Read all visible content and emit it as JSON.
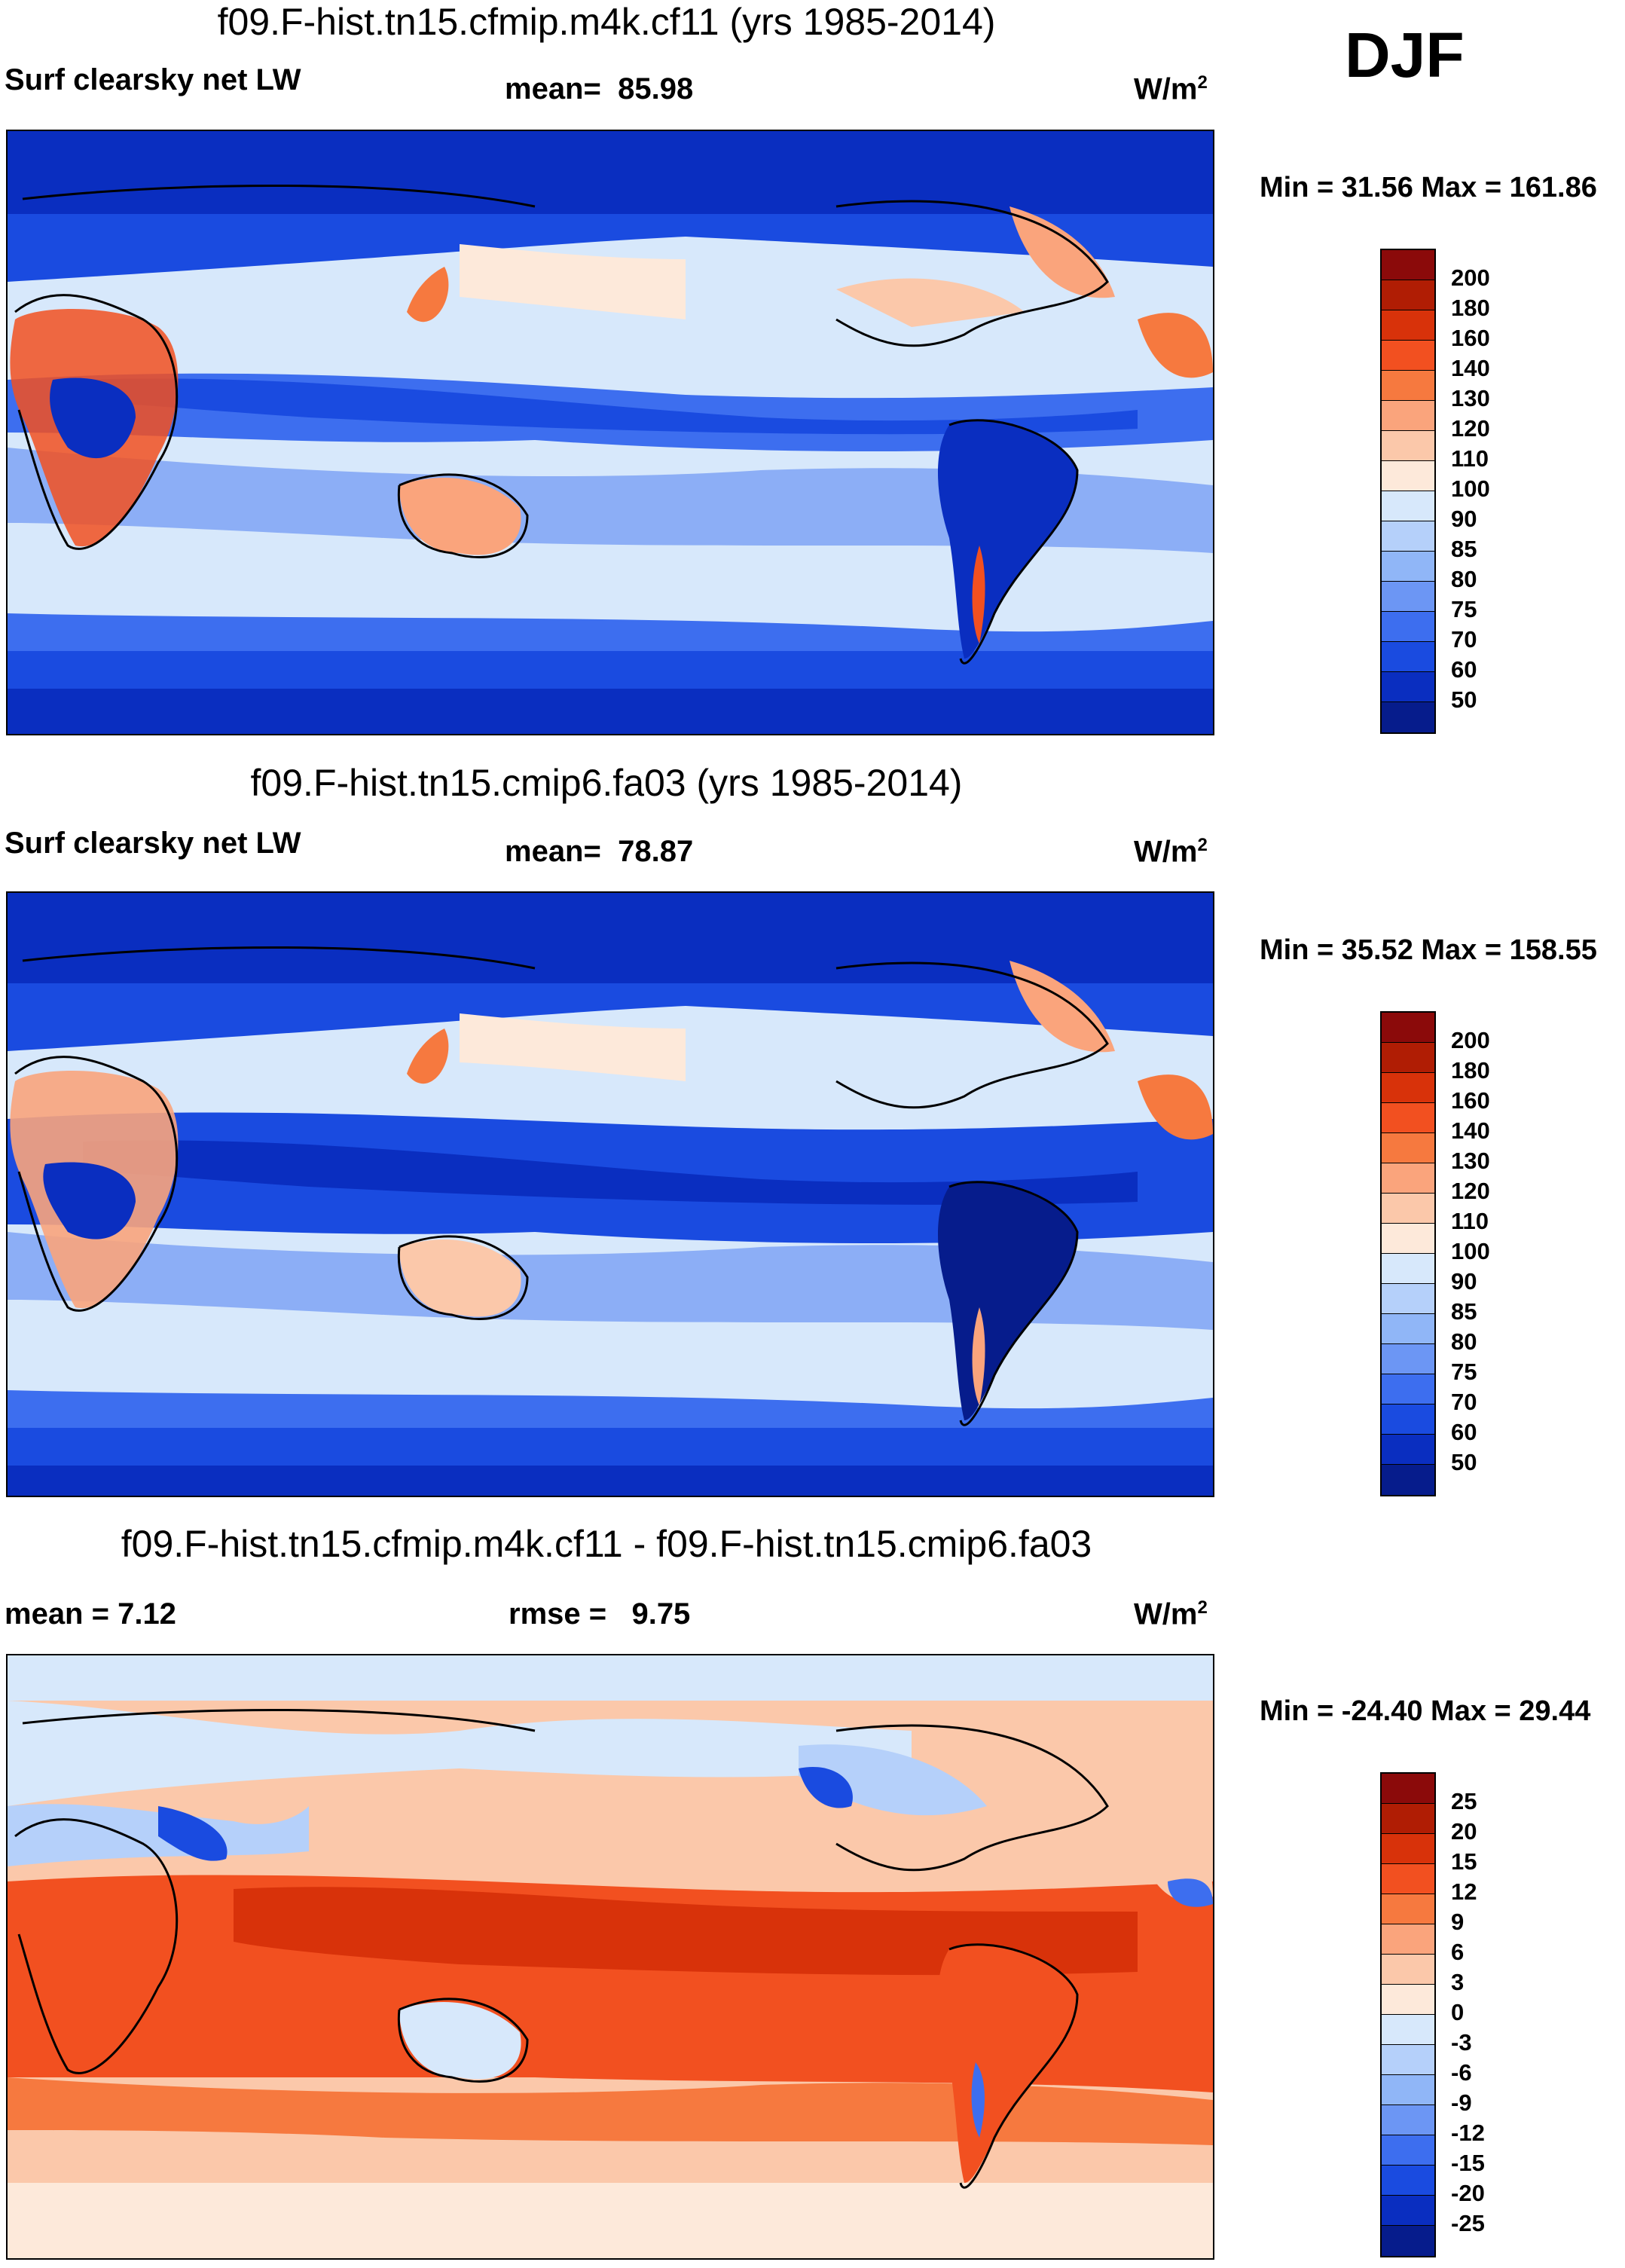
{
  "season": "DJF",
  "panels": [
    {
      "title": "f09.F-hist.tn15.cfmip.m4k.cf11 (yrs 1985-2014)",
      "left_label": "Surf clearsky net LW",
      "stat_label": "mean=",
      "stat_value": "85.98",
      "units": "W/m",
      "units_exp": "2",
      "min_text": "Min =  31.56 Max = 161.86",
      "colorbar": {
        "levels": [
          "200",
          "180",
          "160",
          "140",
          "130",
          "120",
          "110",
          "100",
          "90",
          "85",
          "80",
          "75",
          "70",
          "60",
          "50"
        ],
        "colors": [
          "#8b0a0a",
          "#b01d04",
          "#d8320a",
          "#f25020",
          "#f6793f",
          "#faa47c",
          "#fbc8aa",
          "#fde9da",
          "#d7e8fb",
          "#b5d0fa",
          "#90b6f7",
          "#6c96f4",
          "#3d6eef",
          "#1a4be0",
          "#0a2ec0",
          "#061c8c"
        ]
      }
    },
    {
      "title": "f09.F-hist.tn15.cmip6.fa03 (yrs 1985-2014)",
      "left_label": "Surf clearsky net LW",
      "stat_label": "mean=",
      "stat_value": "78.87",
      "units": "W/m",
      "units_exp": "2",
      "min_text": "Min =  35.52 Max = 158.55",
      "colorbar": {
        "levels": [
          "200",
          "180",
          "160",
          "140",
          "130",
          "120",
          "110",
          "100",
          "90",
          "85",
          "80",
          "75",
          "70",
          "60",
          "50"
        ],
        "colors": [
          "#8b0a0a",
          "#b01d04",
          "#d8320a",
          "#f25020",
          "#f6793f",
          "#faa47c",
          "#fbc8aa",
          "#fde9da",
          "#d7e8fb",
          "#b5d0fa",
          "#90b6f7",
          "#6c96f4",
          "#3d6eef",
          "#1a4be0",
          "#0a2ec0",
          "#061c8c"
        ]
      }
    },
    {
      "title": "f09.F-hist.tn15.cfmip.m4k.cf11 - f09.F-hist.tn15.cmip6.fa03",
      "left_label": "mean =   7.12",
      "stat_label": "rmse =",
      "stat_value": "9.75",
      "units": "W/m",
      "units_exp": "2",
      "min_text": "Min = -24.40 Max =  29.44",
      "colorbar": {
        "levels": [
          "25",
          "20",
          "15",
          "12",
          "9",
          "6",
          "3",
          "0",
          "-3",
          "-6",
          "-9",
          "-12",
          "-15",
          "-20",
          "-25"
        ],
        "colors": [
          "#8b0a0a",
          "#b01d04",
          "#d8320a",
          "#f25020",
          "#f6793f",
          "#faa47c",
          "#fbc8aa",
          "#fde9da",
          "#d7e8fb",
          "#b5d0fa",
          "#90b6f7",
          "#6c96f4",
          "#3d6eef",
          "#1a4be0",
          "#0a2ec0",
          "#061c8c"
        ]
      }
    }
  ]
}
